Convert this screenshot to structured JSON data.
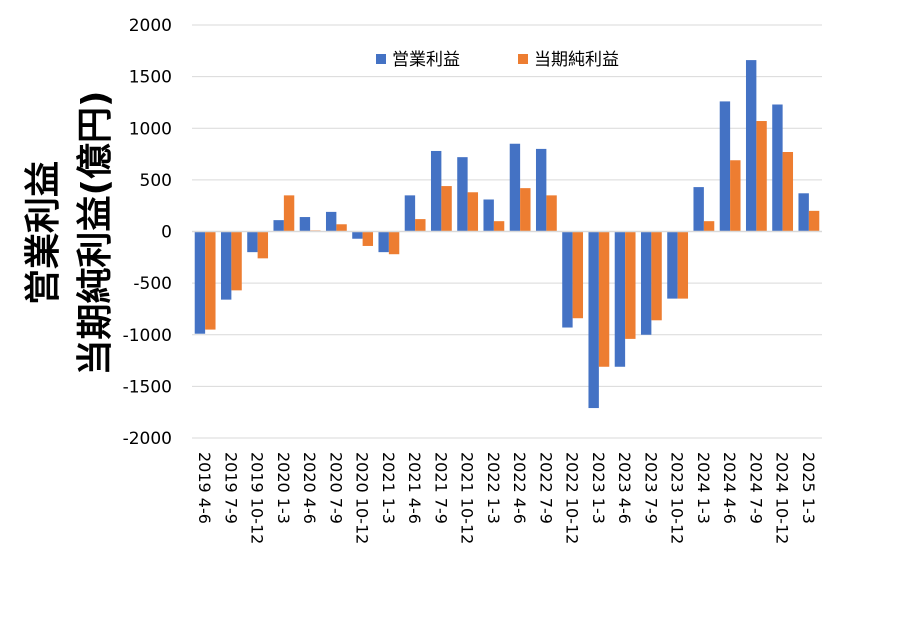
{
  "chart_data": {
    "type": "bar",
    "title": "",
    "ylabel_lines": [
      "営業利益",
      "当期純利益(億円)"
    ],
    "xlabel": "",
    "ylim": [
      -2000,
      2000
    ],
    "yticks": [
      2000,
      1500,
      1000,
      500,
      0,
      -500,
      -1000,
      -1500,
      -2000
    ],
    "grid": true,
    "legend_position": "top-center",
    "categories": [
      "2019 4-6",
      "2019 7-9",
      "2019 10-12",
      "2020 1-3",
      "2020 4-6",
      "2020 7-9",
      "2020 10-12",
      "2021 1-3",
      "2021 4-6",
      "2021 7-9",
      "2021 10-12",
      "2022 1-3",
      "2022 4-6",
      "2022 7-9",
      "2022 10-12",
      "2023 1-3",
      "2023 4-6",
      "2023 7-9",
      "2023 10-12",
      "2024 1-3",
      "2024 4-6",
      "2024 7-9",
      "2024 10-12",
      "2025 1-3"
    ],
    "series": [
      {
        "name": "営業利益",
        "color": "#4472C4",
        "values": [
          -990,
          -660,
          -200,
          110,
          140,
          190,
          -70,
          -200,
          350,
          780,
          720,
          310,
          850,
          800,
          -930,
          -1710,
          -1310,
          -1000,
          -650,
          430,
          1260,
          1660,
          1230,
          370
        ]
      },
      {
        "name": "当期純利益",
        "color": "#ED7D31",
        "values": [
          -950,
          -570,
          -260,
          350,
          10,
          70,
          -140,
          -220,
          120,
          440,
          380,
          100,
          420,
          350,
          -840,
          -1310,
          -1040,
          -860,
          -650,
          100,
          690,
          1070,
          770,
          200
        ]
      }
    ]
  }
}
